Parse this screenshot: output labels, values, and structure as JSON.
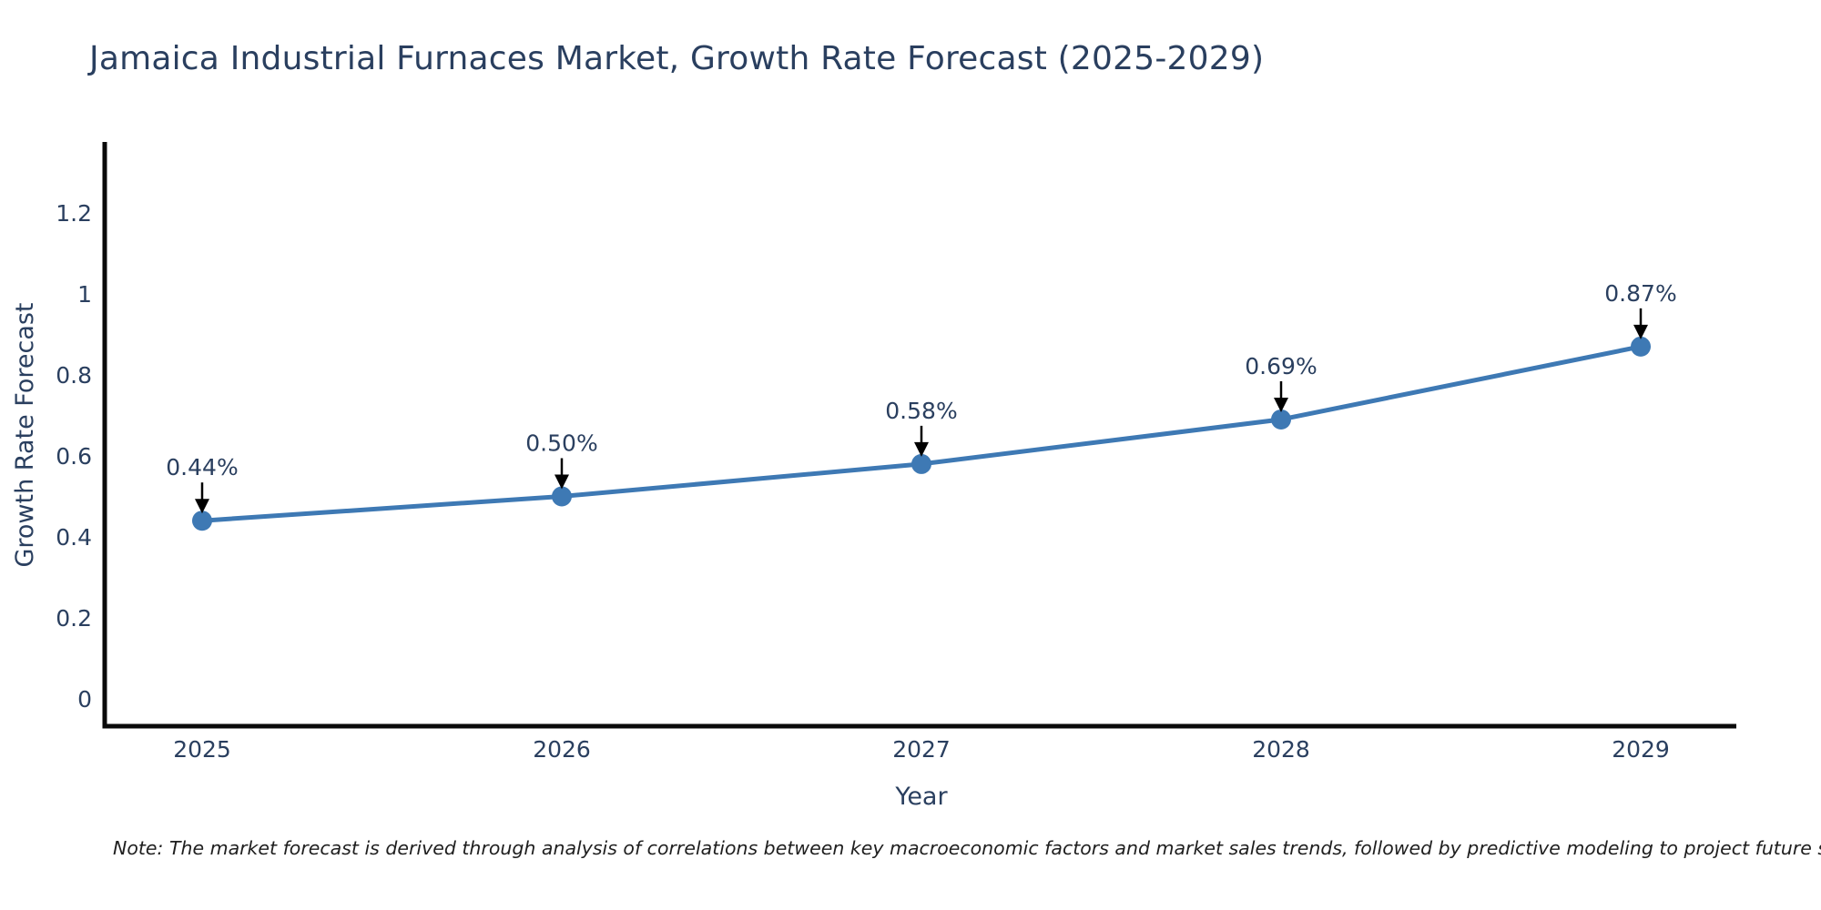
{
  "title": "Jamaica Industrial Furnaces Market, Growth Rate Forecast (2025-2029)",
  "note": "Note: The market forecast is derived through analysis of correlations between key macroeconomic factors and market sales trends, followed by predictive modeling to project future sales",
  "chart_data": {
    "type": "line",
    "title": "Jamaica Industrial Furnaces Market, Growth Rate Forecast (2025-2029)",
    "xlabel": "Year",
    "ylabel": "Growth Rate Forecast",
    "categories": [
      "2025",
      "2026",
      "2027",
      "2028",
      "2029"
    ],
    "series": [
      {
        "name": "Growth Rate Forecast",
        "values": [
          0.44,
          0.5,
          0.58,
          0.69,
          0.87
        ]
      }
    ],
    "point_labels": [
      "0.44%",
      "0.50%",
      "0.58%",
      "0.69%",
      "0.87%"
    ],
    "yticks": {
      "values": [
        0,
        0.2,
        0.4,
        0.6,
        0.8,
        1,
        1.2
      ],
      "labels": [
        "0",
        "0.2",
        "0.4",
        "0.6",
        "0.8",
        "1",
        "1.2"
      ]
    },
    "ylim": [
      -0.07,
      1.37
    ],
    "grid": false,
    "legend_position": "none",
    "annotation_style": "value-labels-with-down-arrows",
    "colors": {
      "line": "#3e79b4",
      "marker": "#3e79b4",
      "axis": "#0a0a0a",
      "title_text": "#2a3f5f",
      "tick_text": "#2a3f5f",
      "axis_title_text": "#2a3f5f",
      "annotation_text": "#2a3f5f",
      "arrow": "#000000",
      "note_text": "#1f1f1f",
      "background": "#ffffff"
    }
  }
}
